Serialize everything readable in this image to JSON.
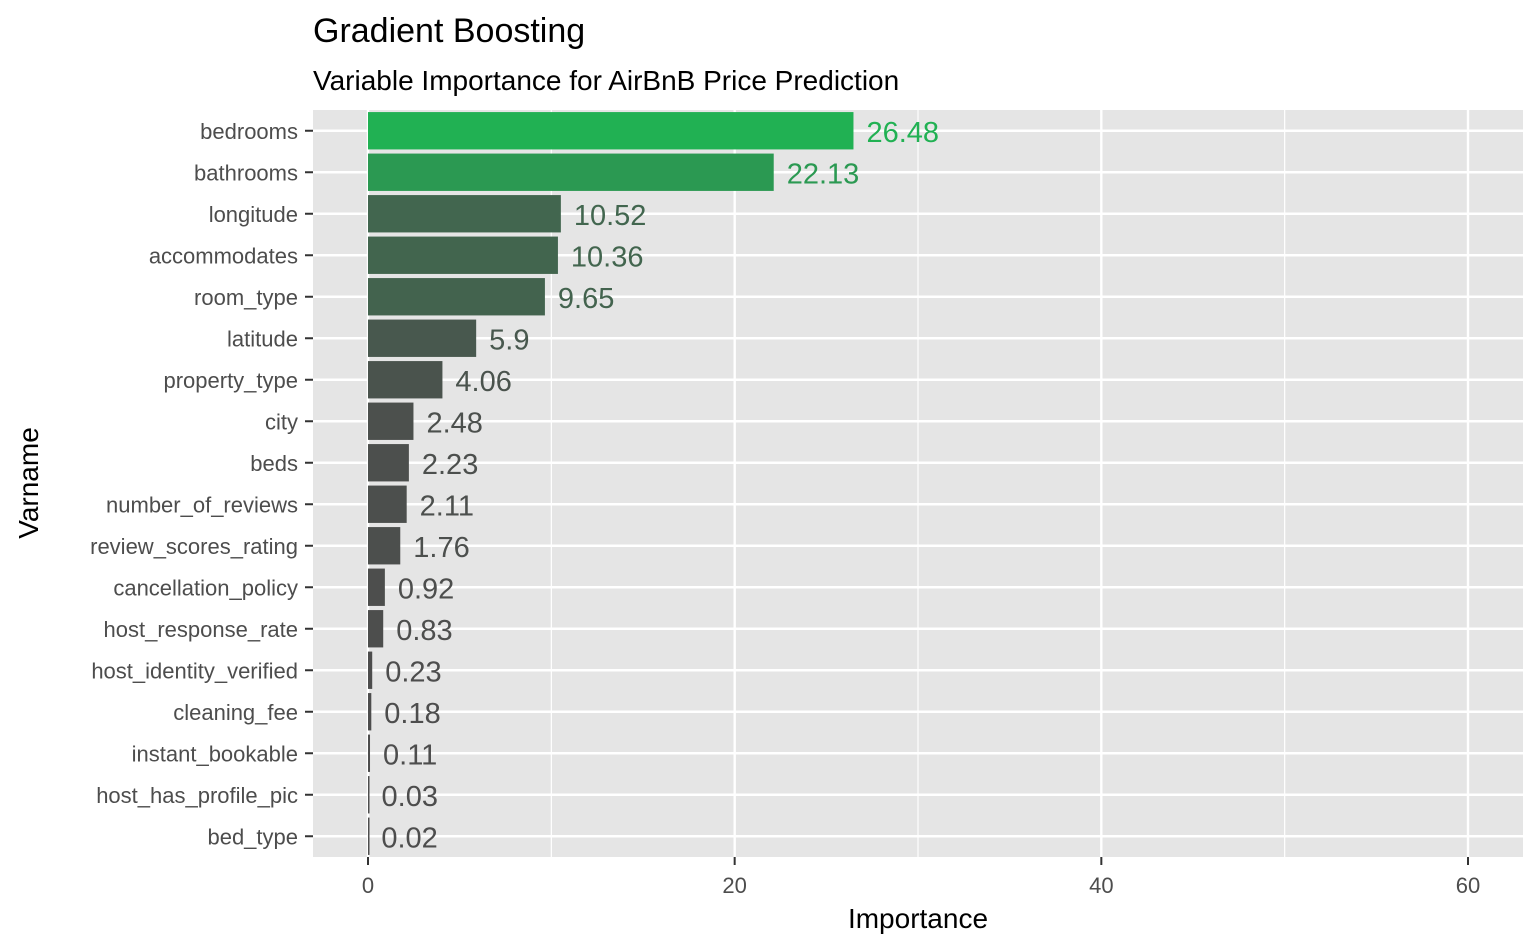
{
  "chart_data": {
    "type": "bar",
    "orientation": "horizontal",
    "title": "Gradient Boosting",
    "subtitle": "Variable Importance for AirBnB Price Prediction",
    "xlabel": "Importance",
    "ylabel": "Varname",
    "xlim": [
      -3,
      63
    ],
    "xticks": [
      0,
      20,
      40,
      60
    ],
    "grid": true,
    "legend": "none",
    "categories": [
      "bedrooms",
      "bathrooms",
      "longitude",
      "accommodates",
      "room_type",
      "latitude",
      "property_type",
      "city",
      "beds",
      "number_of_reviews",
      "review_scores_rating",
      "cancellation_policy",
      "host_response_rate",
      "host_identity_verified",
      "cleaning_fee",
      "instant_bookable",
      "host_has_profile_pic",
      "bed_type"
    ],
    "values": [
      26.48,
      22.13,
      10.52,
      10.36,
      9.65,
      5.9,
      4.06,
      2.48,
      2.23,
      2.11,
      1.76,
      0.92,
      0.83,
      0.23,
      0.18,
      0.11,
      0.03,
      0.02
    ],
    "value_labels": [
      "26.48",
      "22.13",
      "10.52",
      "10.36",
      "9.65",
      "5.9",
      "4.06",
      "2.48",
      "2.23",
      "2.11",
      "1.76",
      "0.92",
      "0.83",
      "0.23",
      "0.18",
      "0.11",
      "0.03",
      "0.02"
    ],
    "colors": {
      "panel_background": "#e5e5e5",
      "gridline": "#ffffff",
      "bar_low": "#4d4d4d",
      "bar_high": "#21b153",
      "tick_label": "#4d4d4d",
      "title": "#000000"
    }
  }
}
